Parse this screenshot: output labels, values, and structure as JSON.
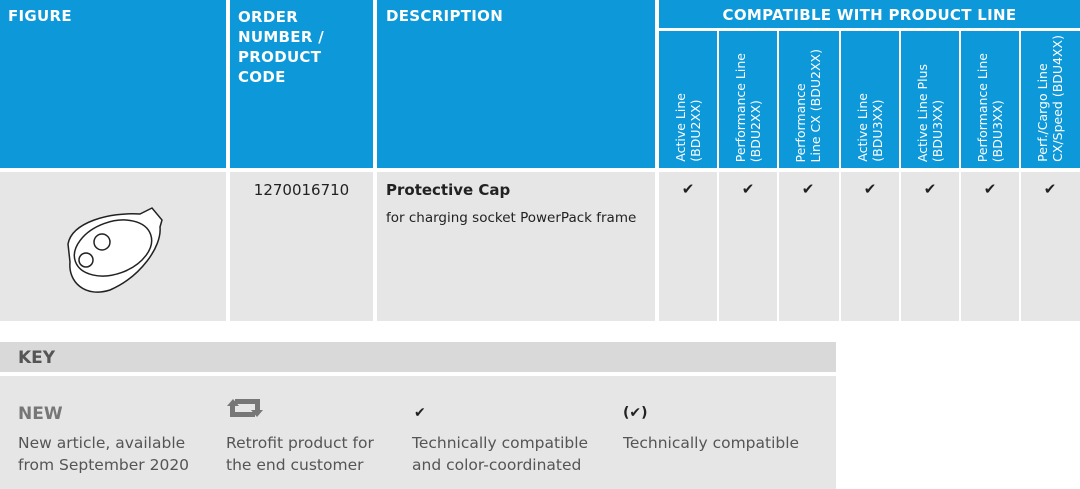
{
  "header": {
    "figure": "FIGURE",
    "order": [
      "ORDER",
      "NUMBER /",
      "PRODUCT",
      "CODE"
    ],
    "description": "DESCRIPTION",
    "compatible": "COMPATIBLE WITH PRODUCT LINE",
    "product_lines": [
      [
        "Active Line",
        "(BDU2XX)"
      ],
      [
        "Performance Line",
        "(BDU2XX)"
      ],
      [
        "Performance",
        "Line CX (BDU2XX)"
      ],
      [
        "Active Line",
        "(BDU3XX)"
      ],
      [
        "Active Line Plus",
        "(BDU3XX)"
      ],
      [
        "Performance Line",
        "(BDU3XX)"
      ],
      [
        "Perf./Cargo Line",
        "CX/Speed (BDU4XX)"
      ]
    ]
  },
  "rows": [
    {
      "order": "1270016710",
      "title": "Protective Cap",
      "subtitle": "for charging socket PowerPack frame",
      "compat": [
        "✔",
        "✔",
        "✔",
        "✔",
        "✔",
        "✔",
        "✔"
      ]
    }
  ],
  "key": {
    "title": "KEY",
    "items": [
      {
        "title": "NEW",
        "text": [
          "New article, available",
          "from September 2020"
        ]
      },
      {
        "text": [
          "Retrofit product for",
          "the end customer"
        ]
      },
      {
        "title": "✔",
        "text": [
          "Technically compatible",
          "and color-coordinated"
        ]
      },
      {
        "title": "(✔)",
        "text": [
          "Technically compatible"
        ]
      }
    ]
  }
}
